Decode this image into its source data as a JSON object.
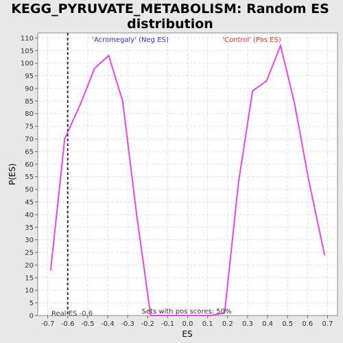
{
  "chart_data": {
    "type": "line",
    "title_line1": "KEGG_PYRUVATE_METABOLISM: Random ES",
    "title_line2": "distribution",
    "xlabel": "ES",
    "ylabel": "P(ES)",
    "xlim": [
      -0.75,
      0.75
    ],
    "ylim": [
      0,
      112
    ],
    "x_ticks": [
      -0.7,
      -0.6,
      -0.5,
      -0.4,
      -0.3,
      -0.2,
      -0.1,
      0.0,
      0.1,
      0.2,
      0.3,
      0.4,
      0.5,
      0.6,
      0.7
    ],
    "x_tick_labels": [
      "-0.7",
      "-0.6",
      "-0.5",
      "-0.4",
      "-0.3",
      "-0.2",
      "-0.1",
      "0.0",
      "0.1",
      "0.2",
      "0.3",
      "0.4",
      "0.5",
      "0.6",
      "0.7"
    ],
    "y_ticks": [
      0,
      5,
      10,
      15,
      20,
      25,
      30,
      35,
      40,
      45,
      50,
      55,
      60,
      65,
      70,
      75,
      80,
      85,
      90,
      95,
      100,
      105,
      110
    ],
    "grid": true,
    "series": [
      {
        "color": "#ee44ee",
        "x": [
          -0.685,
          -0.615,
          -0.535,
          -0.465,
          -0.395,
          -0.325,
          -0.255,
          -0.185,
          -0.115,
          -0.045,
          0.045,
          0.115,
          0.185,
          0.255,
          0.325,
          0.395,
          0.465,
          0.535,
          0.605,
          0.685
        ],
        "y": [
          18,
          70,
          84,
          98,
          103,
          85,
          40,
          0,
          0,
          0,
          0,
          0,
          1,
          53,
          89,
          93,
          107,
          84,
          54,
          24
        ]
      }
    ],
    "real_es": -0.6,
    "real_es_color": "#333333",
    "annotations": {
      "neg_label": "'Acromegaly' (Neg ES)",
      "neg_color": "#3333cc",
      "pos_label": "'Control' (Pos ES)",
      "pos_color": "#ee3333",
      "real_es_label": "Real ES -0.6",
      "pos_scores_label": "Sets with pos scores: 50%"
    }
  }
}
